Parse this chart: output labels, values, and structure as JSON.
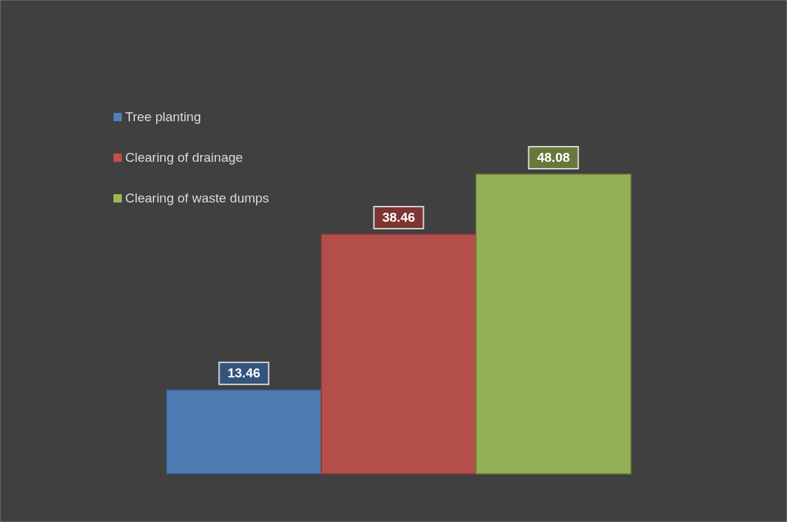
{
  "chart_data": {
    "type": "bar",
    "categories": [
      null
    ],
    "data_labels": true,
    "legend": "top left",
    "series": [
      {
        "name": "Tree planting",
        "color": "#4f81bd",
        "values": [
          13.46
        ]
      },
      {
        "name": "Clearing of drainage",
        "color": "#c0504d",
        "values": [
          38.46
        ]
      },
      {
        "name": "Clearing of waste dumps",
        "color": "#9bbb59",
        "values": [
          48.08
        ]
      }
    ]
  }
}
